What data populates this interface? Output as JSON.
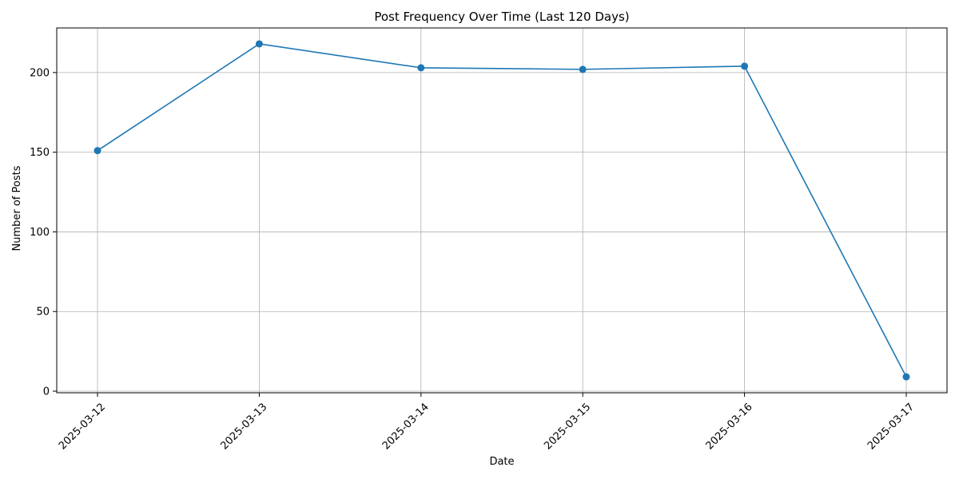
{
  "chart_data": {
    "type": "line",
    "title": "Post Frequency Over Time (Last 120 Days)",
    "xlabel": "Date",
    "ylabel": "Number of Posts",
    "categories": [
      "2025-03-12",
      "2025-03-13",
      "2025-03-14",
      "2025-03-15",
      "2025-03-16",
      "2025-03-17"
    ],
    "series": [
      {
        "values": [
          151,
          218,
          203,
          202,
          204,
          9
        ],
        "color": "#1f77b4",
        "marker": "circle"
      }
    ],
    "ylim": [
      -1,
      228
    ],
    "yticks": [
      0,
      50,
      100,
      150,
      200
    ],
    "grid": true,
    "legend": "none"
  }
}
